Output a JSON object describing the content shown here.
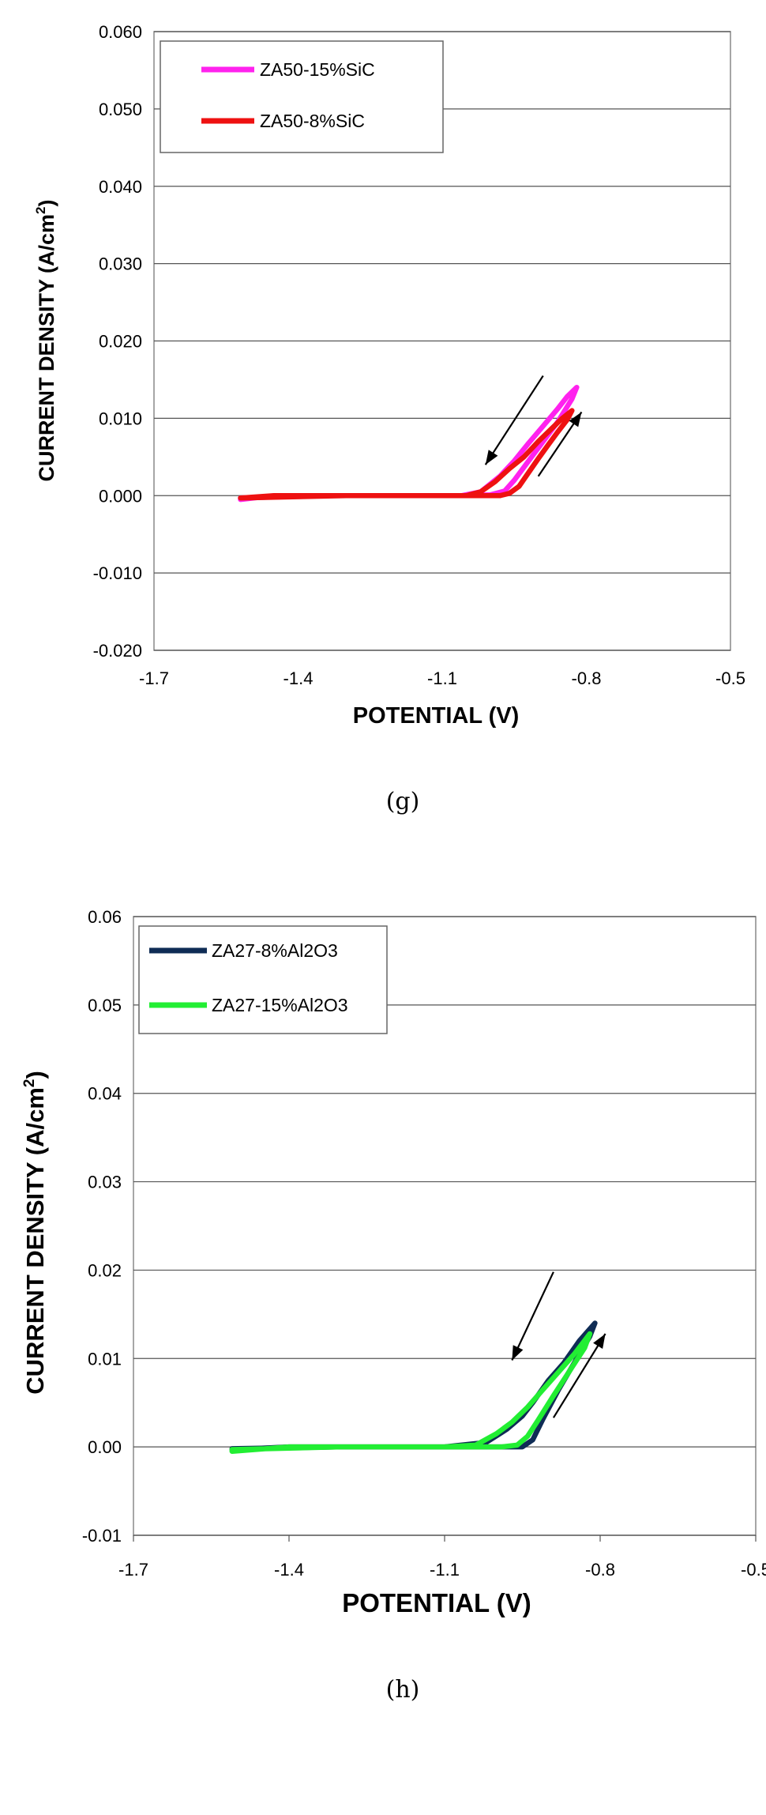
{
  "chart_data": [
    {
      "type": "line",
      "xlabel": "POTENTIAL (V)",
      "ylabel": "CURRENT DENSITY (A/cm",
      "ylabel_sup": "2",
      "ylabel_end": ")",
      "xlim": [
        -1.7,
        -0.5
      ],
      "ylim": [
        -0.02,
        0.06
      ],
      "xticks": [
        "-1.7",
        "-1.4",
        "-1.1",
        "-0.8",
        "-0.5"
      ],
      "yticks": [
        "0.060",
        "0.050",
        "0.040",
        "0.030",
        "0.020",
        "0.010",
        "0.000",
        "-0.010",
        "-0.020"
      ],
      "grid": "horizontal",
      "legend_position": "top-left",
      "caption": "(g)",
      "series": [
        {
          "name": "ZA50-15%SiC",
          "color": "#ff22ee",
          "x": [
            -1.52,
            -1.45,
            -1.3,
            -1.15,
            -1.06,
            -1.02,
            -0.98,
            -0.95,
            -0.92,
            -0.89,
            -0.86,
            -0.84,
            -0.82,
            -0.83,
            -0.86,
            -0.89,
            -0.92,
            -0.95,
            -0.97,
            -1.0,
            -1.06,
            -1.2,
            -1.35,
            -1.52
          ],
          "y": [
            -0.0005,
            0.0,
            0.0,
            0.0,
            0.0,
            0.0005,
            0.0025,
            0.0045,
            0.0068,
            0.009,
            0.0112,
            0.0128,
            0.014,
            0.0125,
            0.0095,
            0.007,
            0.0045,
            0.002,
            0.0006,
            0.0001,
            0.0,
            0.0,
            0.0,
            -0.0003
          ]
        },
        {
          "name": "ZA50-8%SiC",
          "color": "#ee1111",
          "x": [
            -1.52,
            -1.45,
            -1.3,
            -1.15,
            -1.05,
            -1.02,
            -0.99,
            -0.96,
            -0.93,
            -0.9,
            -0.87,
            -0.85,
            -0.83,
            -0.84,
            -0.86,
            -0.88,
            -0.9,
            -0.92,
            -0.94,
            -0.96,
            -0.98,
            -1.0,
            -1.1,
            -1.3,
            -1.52
          ],
          "y": [
            -0.0003,
            0.0,
            0.0,
            0.0,
            0.0,
            0.0005,
            0.0018,
            0.0035,
            0.005,
            0.007,
            0.0088,
            0.01,
            0.011,
            0.0098,
            0.0082,
            0.0065,
            0.0048,
            0.003,
            0.0012,
            0.0003,
            0.0,
            0.0,
            0.0,
            0.0,
            -0.0003
          ]
        }
      ],
      "annotations": [
        {
          "type": "arrow",
          "from": [
            -0.89,
            0.0155
          ],
          "to": [
            -1.01,
            0.004
          ]
        },
        {
          "type": "arrow",
          "from": [
            -0.9,
            0.0025
          ],
          "to": [
            -0.81,
            0.0108
          ]
        }
      ]
    },
    {
      "type": "line",
      "xlabel": "POTENTIAL (V)",
      "ylabel": "CURRENT DENSITY (A/cm",
      "ylabel_sup": "2",
      "ylabel_end": ")",
      "xlim": [
        -1.7,
        -0.5
      ],
      "ylim": [
        -0.01,
        0.06
      ],
      "xticks": [
        "-1.7",
        "-1.4",
        "-1.1",
        "-0.8",
        "-0.5"
      ],
      "yticks": [
        "0.06",
        "0.05",
        "0.04",
        "0.03",
        "0.02",
        "0.01",
        "0.00",
        "-0.01"
      ],
      "grid": "horizontal",
      "legend_position": "top-left",
      "caption": "(h)",
      "series": [
        {
          "name": "ZA27-8%Al2O3",
          "color": "#0f2c55",
          "x": [
            -1.51,
            -1.4,
            -1.25,
            -1.1,
            -1.02,
            -0.98,
            -0.95,
            -0.93,
            -0.9,
            -0.87,
            -0.84,
            -0.81,
            -0.82,
            -0.85,
            -0.88,
            -0.91,
            -0.93,
            -0.95,
            -0.97,
            -1.1,
            -1.3,
            -1.51
          ],
          "y": [
            -0.0003,
            0.0,
            0.0,
            0.0,
            0.0005,
            0.002,
            0.0035,
            0.005,
            0.0075,
            0.0095,
            0.012,
            0.014,
            0.0125,
            0.0095,
            0.0065,
            0.0032,
            0.0008,
            0.0,
            0.0,
            0.0,
            0.0,
            -0.0002
          ]
        },
        {
          "name": "ZA27-15%Al2O3",
          "color": "#22ee33",
          "x": [
            -1.51,
            -1.4,
            -1.25,
            -1.1,
            -1.04,
            -1.0,
            -0.97,
            -0.94,
            -0.91,
            -0.88,
            -0.85,
            -0.82,
            -0.83,
            -0.86,
            -0.89,
            -0.92,
            -0.94,
            -0.96,
            -0.99,
            -1.1,
            -1.3,
            -1.51
          ],
          "y": [
            -0.0005,
            0.0,
            0.0,
            0.0,
            0.0002,
            0.0015,
            0.0028,
            0.0045,
            0.0065,
            0.0085,
            0.0105,
            0.0128,
            0.0112,
            0.0085,
            0.0058,
            0.003,
            0.0012,
            0.0002,
            0.0,
            0.0,
            0.0,
            -0.0003
          ]
        }
      ],
      "annotations": [
        {
          "type": "arrow",
          "from": [
            -0.89,
            0.0198
          ],
          "to": [
            -0.97,
            0.0098
          ]
        },
        {
          "type": "arrow",
          "from": [
            -0.89,
            0.0033
          ],
          "to": [
            -0.79,
            0.0128
          ]
        }
      ]
    }
  ]
}
